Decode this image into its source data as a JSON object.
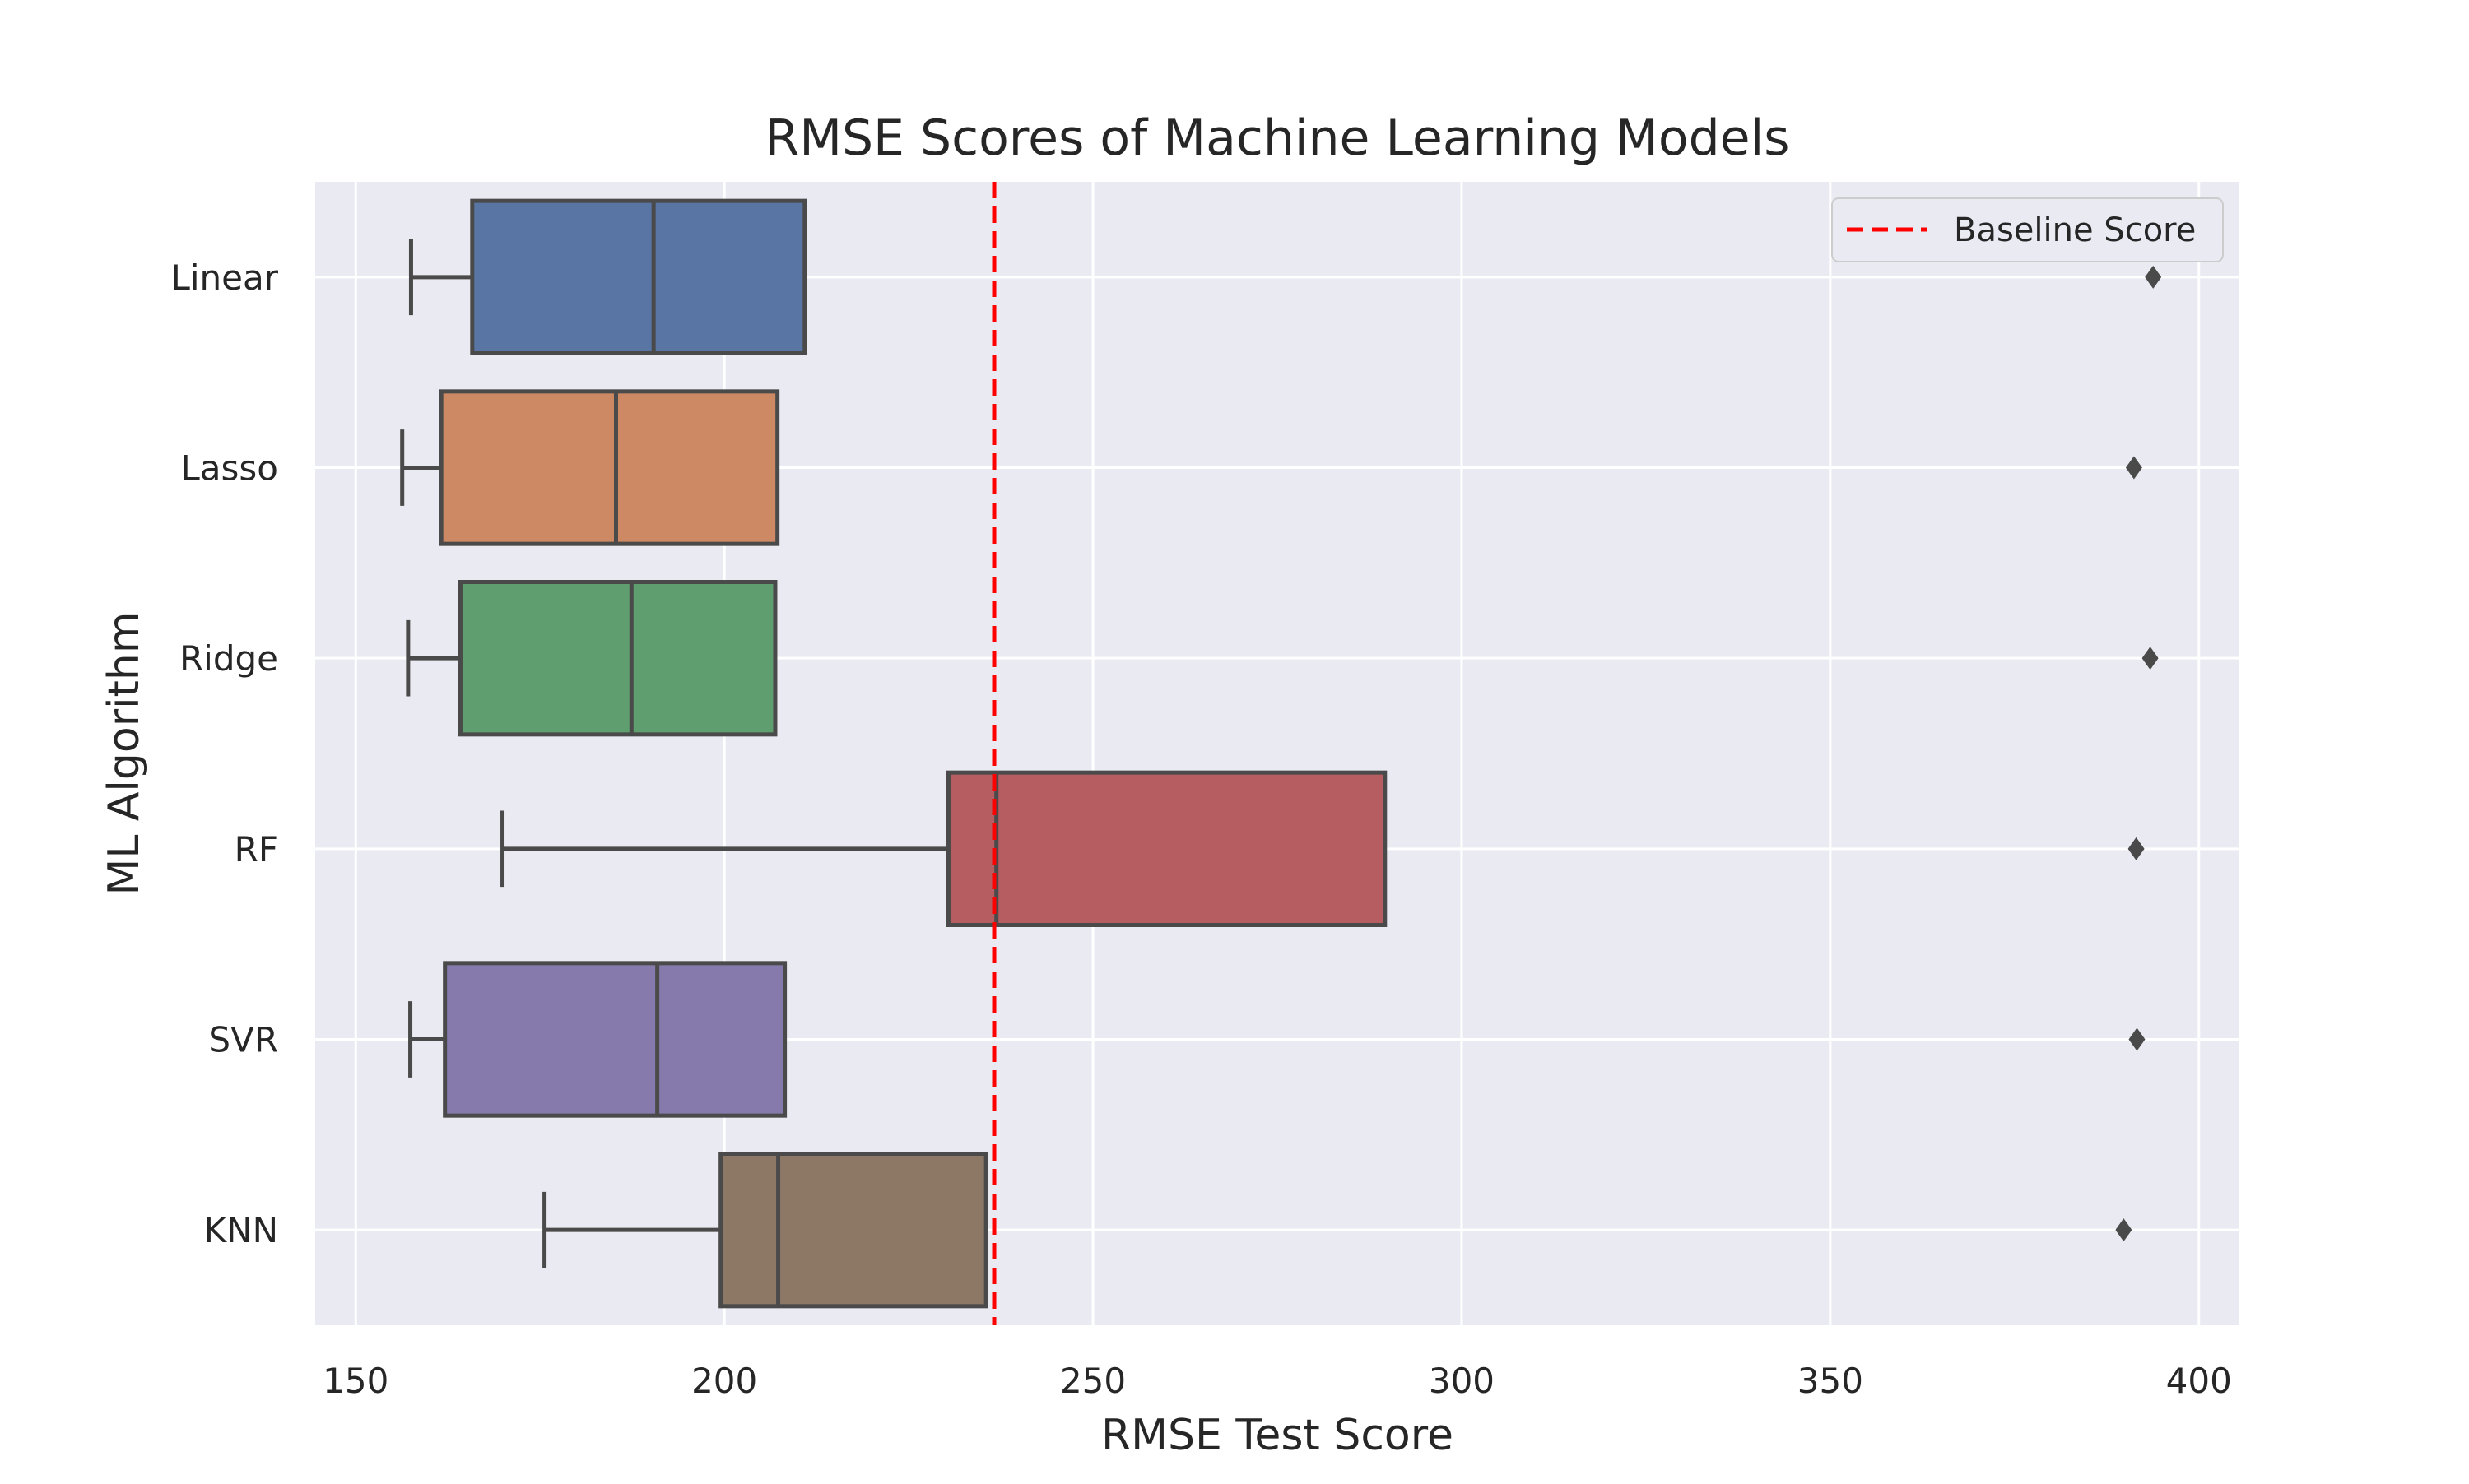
{
  "chart_data": {
    "type": "box",
    "orientation": "horizontal",
    "title": "RMSE Scores of Machine Learning Models",
    "xlabel": "RMSE Test Score",
    "ylabel": "ML Algorithm",
    "xlim": [
      144.5,
      405.5
    ],
    "xticks": [
      150,
      200,
      250,
      300,
      350,
      400
    ],
    "grid": true,
    "background_color": "#EAEAF2",
    "grid_color": "#FFFFFF",
    "box_edge_color": "#4A4A4A",
    "categories": [
      "Linear",
      "Lasso",
      "Ridge",
      "RF",
      "SVR",
      "KNN"
    ],
    "boxes": [
      {
        "name": "Linear",
        "color": "#5875A4",
        "whislo": 157.5,
        "q1": 165.8,
        "med": 190.4,
        "q3": 210.9,
        "whishi": 210.9,
        "fliers": [
          393.8
        ]
      },
      {
        "name": "Lasso",
        "color": "#CC8963",
        "whislo": 156.3,
        "q1": 161.6,
        "med": 185.3,
        "q3": 207.2,
        "whishi": 207.2,
        "fliers": [
          391.2
        ]
      },
      {
        "name": "Ridge",
        "color": "#5F9E6E",
        "whislo": 157.1,
        "q1": 164.2,
        "med": 187.4,
        "q3": 206.9,
        "whishi": 206.9,
        "fliers": [
          393.4
        ]
      },
      {
        "name": "RF",
        "color": "#B55D60",
        "whislo": 169.9,
        "q1": 230.4,
        "med": 236.9,
        "q3": 289.6,
        "whishi": 289.6,
        "fliers": [
          391.5
        ]
      },
      {
        "name": "SVR",
        "color": "#857AAB",
        "whislo": 157.4,
        "q1": 162.1,
        "med": 190.9,
        "q3": 208.2,
        "whishi": 208.2,
        "fliers": [
          391.6
        ]
      },
      {
        "name": "KNN",
        "color": "#8D7866",
        "whislo": 175.6,
        "q1": 199.5,
        "med": 207.3,
        "q3": 235.5,
        "whishi": 235.5,
        "fliers": [
          389.8
        ]
      }
    ],
    "reference_line": {
      "value": 236.6,
      "label": "Baseline Score",
      "color": "#FF0000",
      "style": "dashed"
    },
    "legend": {
      "position": "top-right",
      "entries": [
        "Baseline Score"
      ]
    }
  }
}
